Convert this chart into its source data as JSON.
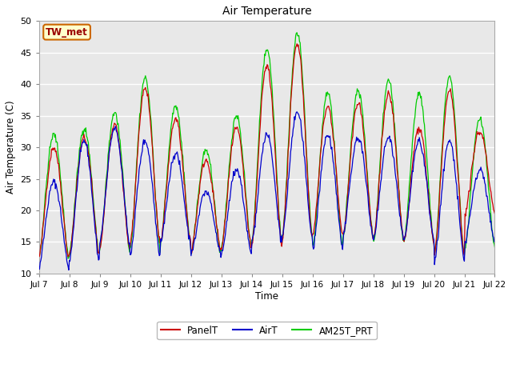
{
  "title": "Air Temperature",
  "xlabel": "Time",
  "ylabel": "Air Temperature (C)",
  "ylim": [
    10,
    50
  ],
  "yticks": [
    10,
    15,
    20,
    25,
    30,
    35,
    40,
    45,
    50
  ],
  "fig_bg_color": "#ffffff",
  "plot_bg_color": "#e8e8e8",
  "grid_color": "#ffffff",
  "annotation_text": "TW_met",
  "annotation_bg": "#ffffcc",
  "annotation_border": "#cc6600",
  "annotation_text_color": "#990000",
  "colors": {
    "PanelT": "#cc0000",
    "AirT": "#0000cc",
    "AM25T_PRT": "#00cc00"
  },
  "legend_labels": [
    "PanelT",
    "AirT",
    "AM25T_PRT"
  ],
  "xtick_labels": [
    "Jul 7",
    "Jul 8",
    "Jul 9",
    "Jul 10",
    "Jul 11",
    "Jul 12",
    "Jul 13",
    "Jul 14",
    "Jul 15",
    "Jul 16",
    "Jul 17",
    "Jul 18",
    "Jul 19",
    "Jul 20",
    "Jul 21",
    "Jul 22"
  ],
  "num_days": 15,
  "pts_per_day": 48,
  "day_peaks_panel": [
    30,
    31.5,
    33.5,
    39.5,
    34.5,
    28,
    33,
    43,
    46.5,
    36.5,
    37,
    38.5,
    33,
    39,
    32.5
  ],
  "day_peaks_air": [
    24.5,
    31,
    33,
    31,
    29,
    23,
    26.5,
    32,
    35.5,
    32,
    31.5,
    31.5,
    31,
    31,
    26.5
  ],
  "day_peaks_am25": [
    32,
    33,
    35.5,
    41,
    36.5,
    29.5,
    35,
    45.5,
    48,
    38.5,
    39,
    40.5,
    38.5,
    41,
    34.5
  ],
  "day_mins_panel": [
    12.5,
    13,
    14,
    14.5,
    15,
    13.5,
    14,
    14.5,
    15.5,
    16,
    16,
    15.5,
    15,
    13,
    19.5
  ],
  "day_mins_air": [
    11,
    12,
    15,
    13,
    15,
    13,
    13,
    15,
    16,
    14,
    16,
    15.5,
    15.5,
    12,
    15
  ],
  "day_mins_am25": [
    12.5,
    13,
    14,
    14,
    15,
    13,
    14,
    15,
    16,
    14,
    16,
    15,
    15,
    13,
    14
  ]
}
